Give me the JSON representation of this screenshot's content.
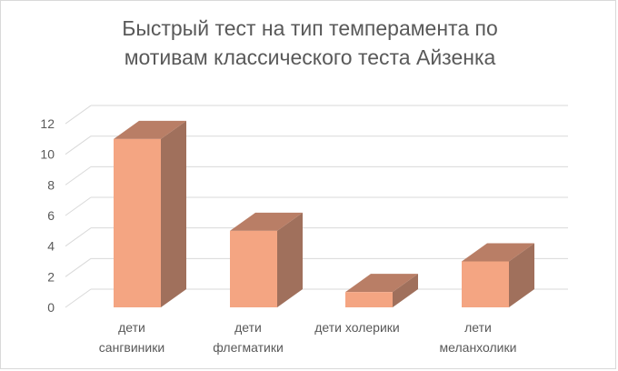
{
  "chart_data": {
    "type": "bar",
    "title_lines": [
      "Быстрый тест на тип темперамента по",
      "мотивам классического теста Айзенка"
    ],
    "categories": [
      [
        "дети",
        "сангвиники"
      ],
      [
        "дети",
        "флегматики"
      ],
      [
        "дети холерики"
      ],
      [
        "лети",
        "меланхолики"
      ]
    ],
    "values": [
      11,
      5,
      1,
      3
    ],
    "ylim": [
      0,
      12
    ],
    "y_ticks": [
      "0",
      "2",
      "4",
      "6",
      "8",
      "10",
      "12"
    ],
    "grid": true,
    "style": "3d-column",
    "colors": {
      "front": "#f4a582",
      "side": "#a0705c",
      "top": "#b97e66",
      "grid": "#d9d9d9",
      "text": "#595959"
    }
  }
}
